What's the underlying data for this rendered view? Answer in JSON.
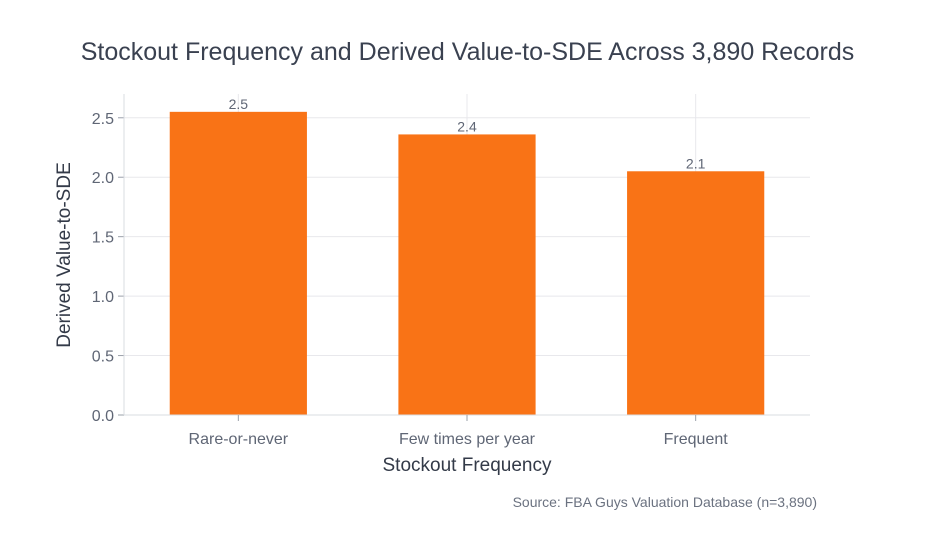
{
  "title": "Stockout Frequency and Derived Value-to-SDE Across 3,890 Records",
  "source": "Source: FBA Guys Valuation Database (n=3,890)",
  "chart_data": {
    "type": "bar",
    "title": "Stockout Frequency and Derived Value-to-SDE Across 3,890 Records",
    "xlabel": "Stockout Frequency",
    "ylabel": "Derived Value-to-SDE",
    "categories": [
      "Rare-or-never",
      "Few times per year",
      "Frequent"
    ],
    "values": [
      2.55,
      2.36,
      2.05
    ],
    "data_labels": [
      "2.5",
      "2.4",
      "2.1"
    ],
    "ylim": [
      0,
      2.7
    ],
    "yticks": [
      0.0,
      0.5,
      1.0,
      1.5,
      2.0,
      2.5
    ],
    "ytick_labels": [
      "0.0",
      "0.5",
      "1.0",
      "1.5",
      "2.0",
      "2.5"
    ],
    "grid": true,
    "bar_color": "#f97316"
  }
}
